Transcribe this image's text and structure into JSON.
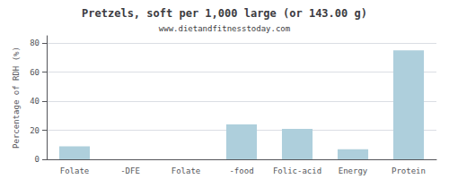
{
  "chart_data": {
    "type": "bar",
    "title": "Pretzels, soft per 1,000 large (or 143.00 g)",
    "subtitle": "www.dietandfitnesstoday.com",
    "ylabel": "Percentage of RDH (%)",
    "categories": [
      "Folate",
      "-DFE",
      "Folate",
      "-food",
      "Folic-acid",
      "Energy",
      "Protein"
    ],
    "values": [
      9,
      0,
      0,
      24,
      21,
      7,
      75
    ],
    "color": "#aecfdc",
    "ylim": [
      0,
      85
    ],
    "yticks": [
      0,
      20,
      40,
      60,
      80
    ],
    "grid": true
  }
}
